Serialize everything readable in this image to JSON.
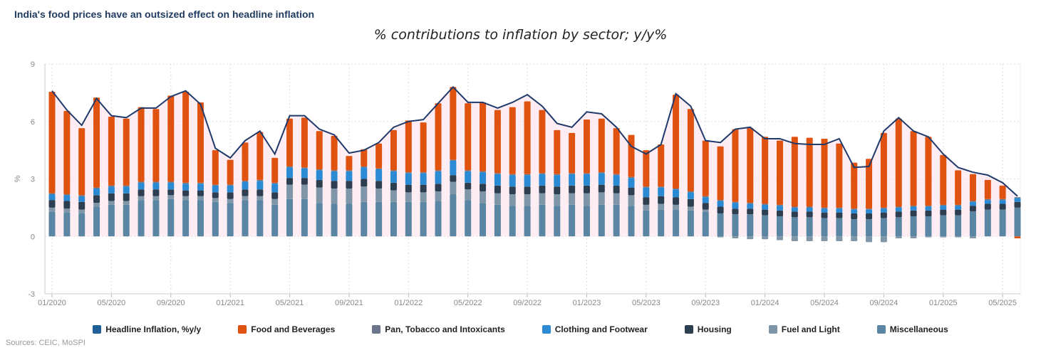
{
  "headline": "India's food prices have an outsized effect on headline inflation",
  "source": "Sources: CEIC, MoSPI",
  "chart_data": {
    "type": "bar",
    "stacked": true,
    "title": "% contributions to inflation by sector; y/y%",
    "ylabel": "%",
    "ylim": [
      -3,
      9
    ],
    "yticks": [
      -3,
      0,
      3,
      6,
      9
    ],
    "x_tick_labels": [
      "01/2020",
      "05/2020",
      "09/2020",
      "01/2021",
      "05/2021",
      "09/2021",
      "01/2022",
      "05/2022",
      "09/2022",
      "01/2023",
      "05/2023",
      "09/2023",
      "01/2024",
      "05/2024",
      "09/2024",
      "01/2025",
      "05/2025"
    ],
    "x_tick_every": 4,
    "grid": true,
    "legend_position": "bottom",
    "categories": [
      "01/2020",
      "02/2020",
      "03/2020",
      "04/2020",
      "05/2020",
      "06/2020",
      "07/2020",
      "08/2020",
      "09/2020",
      "10/2020",
      "11/2020",
      "12/2020",
      "01/2021",
      "02/2021",
      "03/2021",
      "04/2021",
      "05/2021",
      "06/2021",
      "07/2021",
      "08/2021",
      "09/2021",
      "10/2021",
      "11/2021",
      "12/2021",
      "01/2022",
      "02/2022",
      "03/2022",
      "04/2022",
      "05/2022",
      "06/2022",
      "07/2022",
      "08/2022",
      "09/2022",
      "10/2022",
      "11/2022",
      "12/2022",
      "01/2023",
      "02/2023",
      "03/2023",
      "04/2023",
      "05/2023",
      "06/2023",
      "07/2023",
      "08/2023",
      "09/2023",
      "10/2023",
      "11/2023",
      "12/2023",
      "01/2024",
      "02/2024",
      "03/2024",
      "04/2024",
      "05/2024",
      "06/2024",
      "07/2024",
      "08/2024",
      "09/2024",
      "10/2024",
      "11/2024",
      "12/2024",
      "01/2025",
      "02/2025",
      "03/2025",
      "04/2025",
      "05/2025",
      "06/2025"
    ],
    "series": [
      {
        "name": "Miscellaneous",
        "color": "#5b86a3",
        "values": [
          1.3,
          1.25,
          1.2,
          1.55,
          1.65,
          1.65,
          1.9,
          1.9,
          1.95,
          1.9,
          1.9,
          1.8,
          1.75,
          1.9,
          1.9,
          1.65,
          1.95,
          1.95,
          1.75,
          1.7,
          1.7,
          1.8,
          1.8,
          1.8,
          1.8,
          1.8,
          1.85,
          2.2,
          1.9,
          1.75,
          1.65,
          1.6,
          1.6,
          1.65,
          1.6,
          1.65,
          1.6,
          1.65,
          1.65,
          1.6,
          1.35,
          1.4,
          1.4,
          1.35,
          1.3,
          1.2,
          1.15,
          1.15,
          1.1,
          1.05,
          1.0,
          1.0,
          0.95,
          0.95,
          0.9,
          0.9,
          0.95,
          1.0,
          1.05,
          1.05,
          1.1,
          1.1,
          1.3,
          1.4,
          1.4,
          1.5
        ]
      },
      {
        "name": "Fuel and Light",
        "color": "#7f96a8",
        "values": [
          0.2,
          0.2,
          0.2,
          0.2,
          0.2,
          0.2,
          0.2,
          0.2,
          0.2,
          0.2,
          0.2,
          0.2,
          0.2,
          0.2,
          0.2,
          0.3,
          0.75,
          0.75,
          0.8,
          0.8,
          0.8,
          0.8,
          0.7,
          0.6,
          0.5,
          0.5,
          0.5,
          0.65,
          0.55,
          0.6,
          0.6,
          0.6,
          0.6,
          0.6,
          0.6,
          0.6,
          0.65,
          0.65,
          0.6,
          0.55,
          0.3,
          0.3,
          0.25,
          0.2,
          0.1,
          -0.05,
          -0.1,
          -0.15,
          -0.15,
          -0.2,
          -0.25,
          -0.25,
          -0.25,
          -0.25,
          -0.25,
          -0.3,
          -0.3,
          -0.1,
          -0.1,
          -0.05,
          -0.05,
          -0.05,
          -0.1,
          0.0,
          0.0,
          0.0
        ]
      },
      {
        "name": "Housing",
        "color": "#2d3e50",
        "values": [
          0.4,
          0.4,
          0.4,
          0.4,
          0.4,
          0.4,
          0.35,
          0.35,
          0.3,
          0.3,
          0.3,
          0.3,
          0.35,
          0.35,
          0.35,
          0.35,
          0.35,
          0.35,
          0.4,
          0.4,
          0.4,
          0.4,
          0.4,
          0.4,
          0.4,
          0.4,
          0.4,
          0.35,
          0.35,
          0.4,
          0.4,
          0.4,
          0.4,
          0.4,
          0.4,
          0.4,
          0.4,
          0.4,
          0.4,
          0.4,
          0.4,
          0.4,
          0.4,
          0.4,
          0.35,
          0.35,
          0.3,
          0.3,
          0.3,
          0.3,
          0.3,
          0.3,
          0.3,
          0.3,
          0.3,
          0.3,
          0.3,
          0.3,
          0.3,
          0.3,
          0.3,
          0.3,
          0.3,
          0.3,
          0.3,
          0.3
        ]
      },
      {
        "name": "Clothing and Footwear",
        "color": "#2a8ad3",
        "values": [
          0.3,
          0.3,
          0.3,
          0.35,
          0.35,
          0.35,
          0.35,
          0.35,
          0.35,
          0.35,
          0.35,
          0.35,
          0.35,
          0.4,
          0.45,
          0.45,
          0.55,
          0.5,
          0.5,
          0.5,
          0.5,
          0.6,
          0.6,
          0.6,
          0.6,
          0.6,
          0.65,
          0.75,
          0.6,
          0.6,
          0.6,
          0.6,
          0.6,
          0.6,
          0.6,
          0.6,
          0.6,
          0.6,
          0.55,
          0.5,
          0.5,
          0.45,
          0.4,
          0.35,
          0.3,
          0.3,
          0.3,
          0.25,
          0.25,
          0.25,
          0.2,
          0.2,
          0.2,
          0.2,
          0.2,
          0.2,
          0.2,
          0.2,
          0.2,
          0.2,
          0.2,
          0.2,
          0.2,
          0.2,
          0.2,
          0.2
        ]
      },
      {
        "name": "Pan, Tobacco and Intoxicants",
        "color": "#6b7688",
        "values": [
          0.05,
          0.05,
          0.05,
          0.05,
          0.05,
          0.05,
          0.05,
          0.05,
          0.05,
          0.05,
          0.05,
          0.05,
          0.05,
          0.05,
          0.05,
          0.05,
          0.05,
          0.05,
          0.05,
          0.05,
          0.05,
          0.05,
          0.05,
          0.05,
          0.05,
          0.05,
          0.05,
          0.05,
          0.05,
          0.05,
          0.05,
          0.05,
          0.05,
          0.05,
          0.05,
          0.05,
          0.05,
          0.05,
          0.05,
          0.05,
          0.05,
          0.05,
          0.05,
          0.05,
          0.05,
          0.05,
          0.05,
          0.05,
          0.05,
          0.05,
          0.05,
          0.05,
          0.05,
          0.05,
          0.05,
          0.05,
          0.05,
          0.05,
          0.05,
          0.05,
          0.05,
          0.05,
          0.05,
          0.05,
          0.05,
          0.05
        ]
      },
      {
        "name": "Food and Beverages",
        "color": "#e0520f",
        "values": [
          5.3,
          4.35,
          3.5,
          4.7,
          3.6,
          3.5,
          3.9,
          3.8,
          4.5,
          4.75,
          4.2,
          1.8,
          1.3,
          2.0,
          2.5,
          1.3,
          2.5,
          2.6,
          2.0,
          1.8,
          0.75,
          0.9,
          1.3,
          2.1,
          2.7,
          2.6,
          3.5,
          3.8,
          3.5,
          3.6,
          3.3,
          3.5,
          3.8,
          3.3,
          2.3,
          2.1,
          2.8,
          2.8,
          2.4,
          2.2,
          1.9,
          2.2,
          4.9,
          4.3,
          2.9,
          2.8,
          3.8,
          3.9,
          3.5,
          3.35,
          3.65,
          3.6,
          3.6,
          3.35,
          2.4,
          2.6,
          3.9,
          4.6,
          3.9,
          3.6,
          2.6,
          1.8,
          1.4,
          1.0,
          0.7,
          -0.1
        ]
      },
      {
        "name": "Headline Inflation, %y/y",
        "color": "#1f3a6b",
        "type": "line",
        "values": [
          7.6,
          6.6,
          5.8,
          7.2,
          6.3,
          6.2,
          6.7,
          6.7,
          7.3,
          7.6,
          6.9,
          4.6,
          4.1,
          5.0,
          5.5,
          4.3,
          6.3,
          6.3,
          5.6,
          5.3,
          4.35,
          4.5,
          4.9,
          5.7,
          6.0,
          6.1,
          6.95,
          7.8,
          7.0,
          7.0,
          6.7,
          7.0,
          7.4,
          6.8,
          5.9,
          5.7,
          6.5,
          6.4,
          5.7,
          4.7,
          4.3,
          4.8,
          7.45,
          6.8,
          5.0,
          4.9,
          5.6,
          5.7,
          5.1,
          5.1,
          4.85,
          4.8,
          4.8,
          5.1,
          3.6,
          3.65,
          5.5,
          6.2,
          5.5,
          5.2,
          4.3,
          3.6,
          3.35,
          3.2,
          2.8,
          2.1
        ]
      }
    ]
  },
  "legend": [
    {
      "label": "Headline Inflation, %y/y",
      "color": "#1f5f96"
    },
    {
      "label": "Food and Beverages",
      "color": "#e0520f"
    },
    {
      "label": "Pan, Tobacco and Intoxicants",
      "color": "#6b7688"
    },
    {
      "label": "Clothing and Footwear",
      "color": "#2a8ad3"
    },
    {
      "label": "Housing",
      "color": "#2d3e50"
    },
    {
      "label": "Fuel and Light",
      "color": "#7f96a8"
    },
    {
      "label": "Miscellaneous",
      "color": "#5b86a3"
    }
  ]
}
